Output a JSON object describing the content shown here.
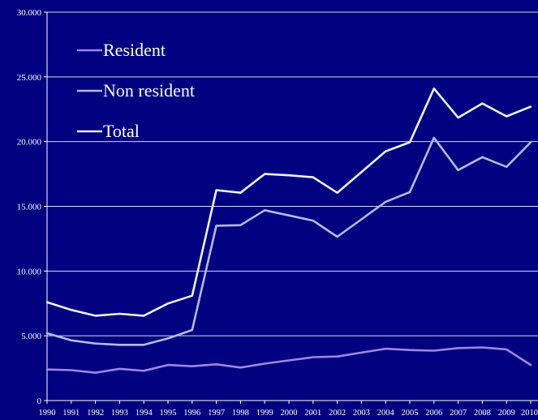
{
  "chart_data": {
    "type": "line",
    "title": "",
    "xlabel": "",
    "ylabel": "",
    "x": [
      "1990",
      "1991",
      "1992",
      "1993",
      "1994",
      "1995",
      "1996",
      "1997",
      "1998",
      "1999",
      "2000",
      "2001",
      "2002",
      "2003",
      "2004",
      "2005",
      "2006",
      "2007",
      "2008",
      "2009",
      "2010"
    ],
    "ylim": [
      0,
      30000
    ],
    "yticks": [
      0,
      5000,
      10000,
      15000,
      20000,
      25000,
      30000
    ],
    "ytick_labels": [
      "0",
      "5.000",
      "10.000",
      "15.000",
      "20.000",
      "25.000",
      "30.000"
    ],
    "grid": true,
    "legend_position": "top-left",
    "series": [
      {
        "name": "Resident",
        "color": "#9f86e6",
        "values": [
          2400,
          2350,
          2150,
          2450,
          2300,
          2750,
          2650,
          2800,
          2550,
          2850,
          3100,
          3350,
          3400,
          3700,
          4000,
          3900,
          3850,
          4050,
          4100,
          3950,
          2750
        ]
      },
      {
        "name": "Non resident",
        "color": "#b8b8e8",
        "values": [
          5200,
          4650,
          4400,
          4300,
          4300,
          4800,
          5450,
          13500,
          13550,
          14700,
          14300,
          13900,
          12650,
          14000,
          15350,
          16100,
          20300,
          17800,
          18800,
          18050,
          19950
        ]
      },
      {
        "name": "Total",
        "color": "#f0f0ff",
        "values": [
          7600,
          7000,
          6550,
          6700,
          6550,
          7500,
          8100,
          16250,
          16050,
          17500,
          17400,
          17250,
          16050,
          17650,
          19250,
          19950,
          24100,
          21850,
          22950,
          21950,
          22700
        ]
      }
    ]
  }
}
